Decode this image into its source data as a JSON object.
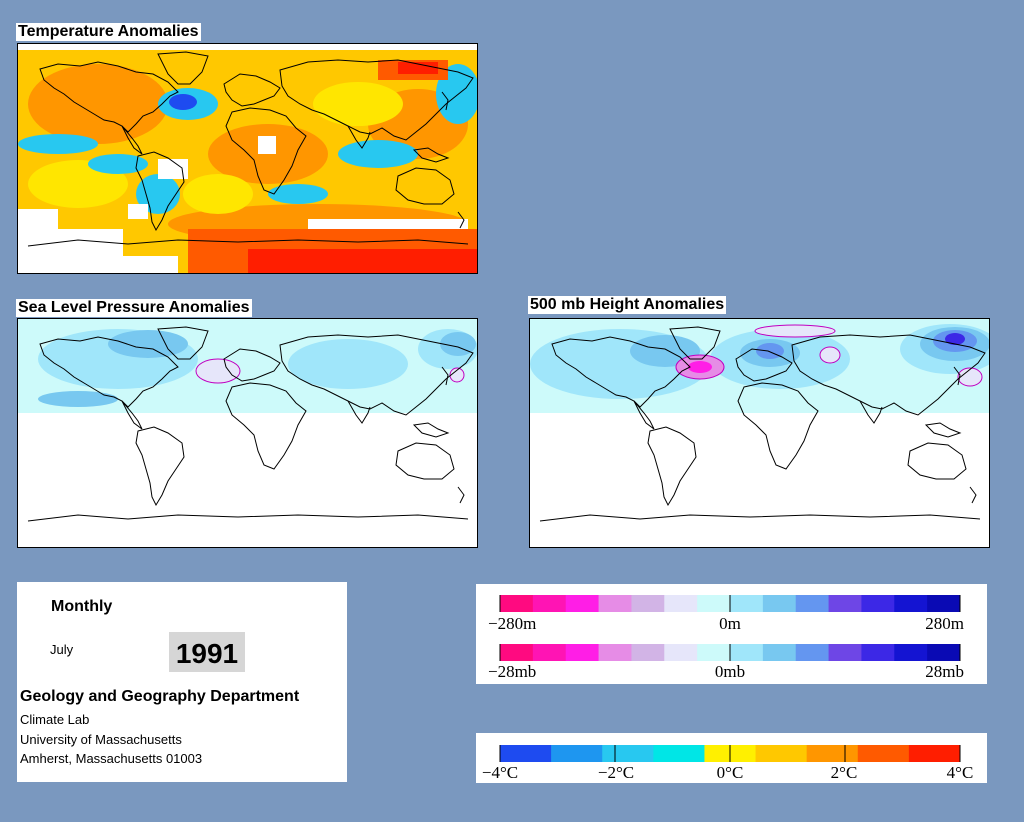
{
  "maps": {
    "temperature": {
      "title": "Temperature Anomalies"
    },
    "slp": {
      "title": "Sea Level Pressure Anomalies"
    },
    "height500": {
      "title": "500 mb Height Anomalies"
    }
  },
  "info": {
    "period": "Monthly",
    "month": "July",
    "year": "1991",
    "department": "Geology and Geography Department",
    "lab": "Climate Lab",
    "university": "University of Massachusetts",
    "address": "Amherst, Massachusetts 01003"
  },
  "legends": {
    "height": {
      "labels": [
        "−280m",
        "0m",
        "280m"
      ]
    },
    "pressure": {
      "labels": [
        "−28mb",
        "0mb",
        "28mb"
      ]
    },
    "temperature": {
      "labels": [
        "−4°C",
        "−2°C",
        "0°C",
        "2°C",
        "4°C"
      ]
    },
    "diverging_colors": [
      "#ff0a80",
      "#ff14b4",
      "#ff1ee6",
      "#e68ce6",
      "#d2b4e6",
      "#e6e6fa",
      "#cdfafa",
      "#a0e6fa",
      "#78c8f0",
      "#6496f0",
      "#6e46e6",
      "#3c28e6",
      "#1414d2",
      "#0a0ab4"
    ],
    "temperature_colors": [
      "#1e4bf0",
      "#1e96f0",
      "#28c8f0",
      "#00e6e6",
      "#fff000",
      "#ffc800",
      "#ff9600",
      "#ff5a00",
      "#ff1e00"
    ]
  }
}
